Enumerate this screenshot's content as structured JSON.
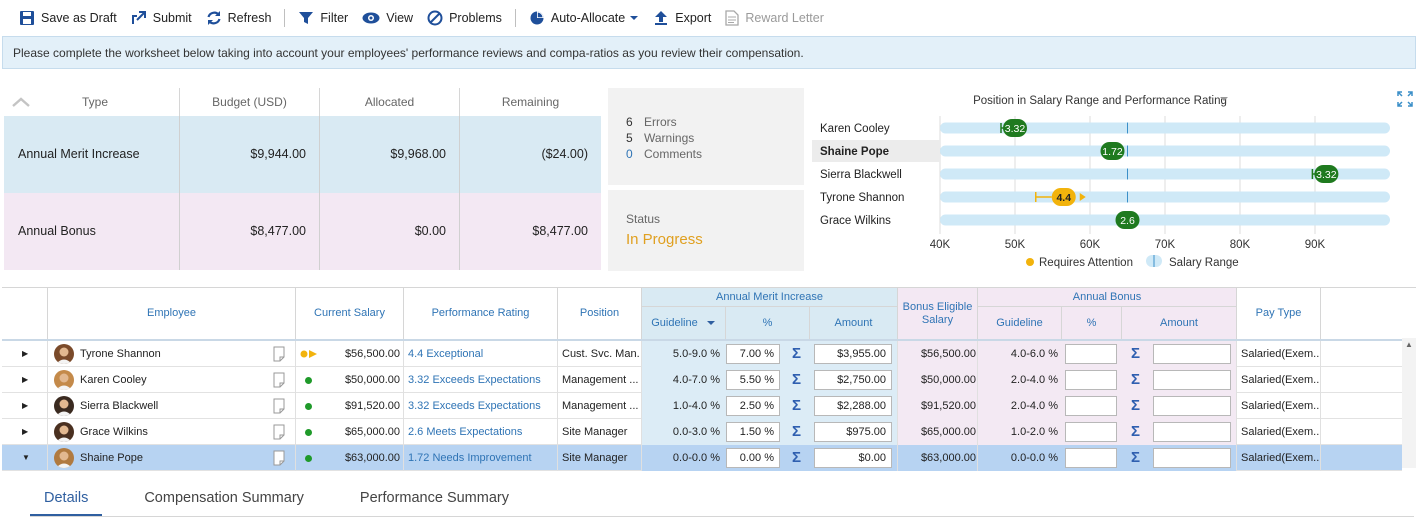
{
  "toolbar": {
    "save_draft": "Save as Draft",
    "submit": "Submit",
    "refresh": "Refresh",
    "filter": "Filter",
    "view": "View",
    "problems": "Problems",
    "auto_allocate": "Auto-Allocate",
    "export": "Export",
    "reward_letter": "Reward Letter"
  },
  "banner": "Please complete the worksheet below taking into account your employees' performance reviews and compa-ratios as you review their compensation.",
  "budget": {
    "headers": {
      "type": "Type",
      "budget": "Budget (USD)",
      "allocated": "Allocated",
      "remaining": "Remaining"
    },
    "rows": [
      {
        "type": "Annual Merit Increase",
        "budget": "$9,944.00",
        "allocated": "$9,968.00",
        "remaining": "($24.00)"
      },
      {
        "type": "Annual Bonus",
        "budget": "$8,477.00",
        "allocated": "$0.00",
        "remaining": "$8,477.00"
      }
    ]
  },
  "problems": {
    "errors_count": "6",
    "errors_label": "Errors",
    "warnings_count": "5",
    "warnings_label": "Warnings",
    "comments_count": "0",
    "comments_label": "Comments"
  },
  "status": {
    "label": "Status",
    "value": "In Progress"
  },
  "chart_data": {
    "type": "scatter",
    "title": "Position in Salary Range and Performance Rating",
    "x_ticks": [
      "40K",
      "50K",
      "60K",
      "70K",
      "80K",
      "90K"
    ],
    "xlim": [
      40000,
      100000
    ],
    "legend": {
      "attention": "Requires Attention",
      "range": "Salary Range"
    },
    "series": [
      {
        "name": "Karen Cooley",
        "salary": 50000,
        "rating": "3.32",
        "min_marker": 50000,
        "attention": false,
        "selected": false
      },
      {
        "name": "Shaine Pope",
        "salary": 63000,
        "rating": "1.72",
        "attention": false,
        "selected": true
      },
      {
        "name": "Sierra Blackwell",
        "salary": 91520,
        "rating": "3.32",
        "min_marker": 91520,
        "attention": false,
        "selected": false
      },
      {
        "name": "Tyrone Shannon",
        "salary": 56500,
        "rating": "4.4",
        "attention": true,
        "selected": false
      },
      {
        "name": "Grace Wilkins",
        "salary": 65000,
        "rating": "2.6",
        "attention": false,
        "selected": false
      }
    ],
    "colors": {
      "dot": "#1f7a1f",
      "attention": "#f2b30c",
      "range": "#cfe9f7",
      "midline": "#3b8fc8"
    }
  },
  "grid": {
    "headers": {
      "employee": "Employee",
      "current_salary": "Current Salary",
      "performance_rating": "Performance Rating",
      "position": "Position",
      "merit_group": "Annual Merit Increase",
      "merit_guideline": "Guideline",
      "merit_pct": "%",
      "merit_amount": "Amount",
      "bonus_eligible": "Bonus Eligible Salary",
      "bonus_group": "Annual Bonus",
      "bonus_guideline": "Guideline",
      "bonus_pct": "%",
      "bonus_amount": "Amount",
      "pay_type": "Pay Type"
    },
    "rows": [
      {
        "name": "Tyrone Shannon",
        "salary": "$56,500.00",
        "rating": "4.4 Exceptional",
        "position": "Cust. Svc. Man...",
        "merit_guideline": "5.0-9.0 %",
        "merit_pct": "7.00 %",
        "merit_amount": "$3,955.00",
        "bonus_eligible": "$56,500.00",
        "bonus_guideline": "4.0-6.0 %",
        "pay_type": "Salaried(Exem...",
        "flag": "attention",
        "selected": false
      },
      {
        "name": "Karen Cooley",
        "salary": "$50,000.00",
        "rating": "3.32 Exceeds Expectations",
        "position": "Management ...",
        "merit_guideline": "4.0-7.0 %",
        "merit_pct": "5.50 %",
        "merit_amount": "$2,750.00",
        "bonus_eligible": "$50,000.00",
        "bonus_guideline": "2.0-4.0 %",
        "pay_type": "Salaried(Exem...",
        "flag": "ok",
        "selected": false
      },
      {
        "name": "Sierra Blackwell",
        "salary": "$91,520.00",
        "rating": "3.32 Exceeds Expectations",
        "position": "Management ...",
        "merit_guideline": "1.0-4.0 %",
        "merit_pct": "2.50 %",
        "merit_amount": "$2,288.00",
        "bonus_eligible": "$91,520.00",
        "bonus_guideline": "2.0-4.0 %",
        "pay_type": "Salaried(Exem...",
        "flag": "ok",
        "selected": false
      },
      {
        "name": "Grace Wilkins",
        "salary": "$65,000.00",
        "rating": "2.6 Meets Expectations",
        "position": "Site Manager",
        "merit_guideline": "0.0-3.0 %",
        "merit_pct": "1.50 %",
        "merit_amount": "$975.00",
        "bonus_eligible": "$65,000.00",
        "bonus_guideline": "1.0-2.0 %",
        "pay_type": "Salaried(Exem...",
        "flag": "ok",
        "selected": false
      },
      {
        "name": "Shaine Pope",
        "salary": "$63,000.00",
        "rating": "1.72 Needs Improvement",
        "position": "Site Manager",
        "merit_guideline": "0.0-0.0 %",
        "merit_pct": "0.00 %",
        "merit_amount": "$0.00",
        "bonus_eligible": "$63,000.00",
        "bonus_guideline": "0.0-0.0 %",
        "pay_type": "Salaried(Exem...",
        "flag": "ok",
        "selected": true
      }
    ]
  },
  "tabs": [
    "Details",
    "Compensation Summary",
    "Performance Summary"
  ]
}
